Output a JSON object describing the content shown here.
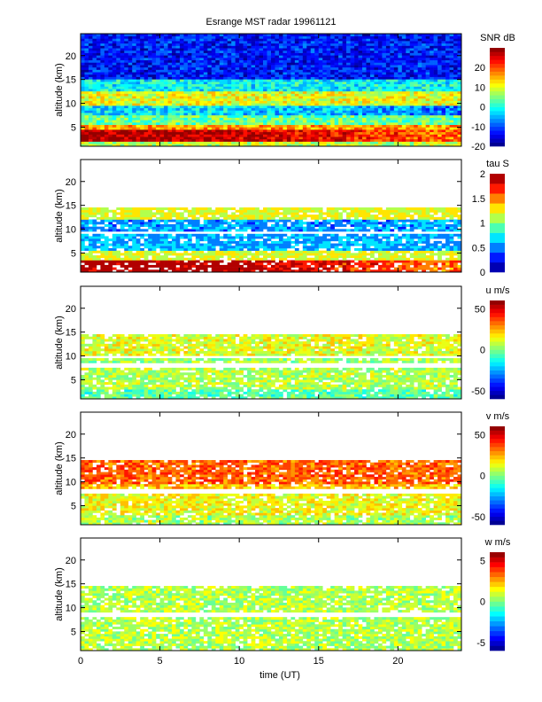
{
  "chart_data": {
    "type": "heatmap",
    "title": "Esrange MST radar 19961121",
    "xlabel": "time (UT)",
    "ylabel": "altitude (km)",
    "xlim": [
      0,
      24
    ],
    "ylim": [
      1,
      24.6
    ],
    "xticks": [
      0,
      5,
      10,
      15,
      20
    ],
    "yticks": [
      5,
      10,
      15,
      20
    ],
    "panels": [
      {
        "name": "snr",
        "colorbar_label": "SNR dB",
        "clim": [
          -20,
          30
        ],
        "cticks": [
          -20,
          -10,
          0,
          10,
          20
        ],
        "levels": 25,
        "profile": [
          {
            "alt": [
              1,
              2
            ],
            "value": 8
          },
          {
            "alt": [
              2,
              4.5
            ],
            "value": 28,
            "late_value": 18
          },
          {
            "alt": [
              4.5,
              5.5
            ],
            "value": 16
          },
          {
            "alt": [
              5.5,
              7.5
            ],
            "value": 4
          },
          {
            "alt": [
              7.5,
              9.5
            ],
            "value": -2,
            "late_value": -8
          },
          {
            "alt": [
              9.5,
              12.5
            ],
            "value": 10
          },
          {
            "alt": [
              12.5,
              15
            ],
            "value": -1
          },
          {
            "alt": [
              15,
              24.6
            ],
            "value": -13
          }
        ],
        "coverage": 1.0
      },
      {
        "name": "tau",
        "colorbar_label": "tau S",
        "clim": [
          0,
          2
        ],
        "cticks": [
          0,
          0.5,
          1,
          1.5,
          2
        ],
        "levels": 10,
        "profile": [
          {
            "alt": [
              1,
              3.5
            ],
            "value": 1.95,
            "late_value": 1.5
          },
          {
            "alt": [
              3.5,
              5.5
            ],
            "value": 1.2
          },
          {
            "alt": [
              5.5,
              9
            ],
            "value": 0.6
          },
          {
            "alt": [
              9,
              9.5
            ],
            "value": null
          },
          {
            "alt": [
              9.5,
              12
            ],
            "value": 0.55
          },
          {
            "alt": [
              12,
              14.5
            ],
            "value": 1.2
          },
          {
            "alt": [
              14.5,
              24.6
            ],
            "value": null
          }
        ],
        "coverage": 0.85
      },
      {
        "name": "u",
        "colorbar_label": "u m/s",
        "clim": [
          -60,
          60
        ],
        "cticks": [
          -50,
          0,
          50
        ],
        "levels": 24,
        "profile": [
          {
            "alt": [
              1,
              3
            ],
            "value": -5
          },
          {
            "alt": [
              3,
              7.5
            ],
            "value": 6
          },
          {
            "alt": [
              7.5,
              8.5
            ],
            "value": null
          },
          {
            "alt": [
              8.5,
              9.5
            ],
            "value": 4
          },
          {
            "alt": [
              9.5,
              10
            ],
            "value": null
          },
          {
            "alt": [
              10,
              14.5
            ],
            "value": 12
          },
          {
            "alt": [
              14.5,
              24.6
            ],
            "value": null
          }
        ],
        "coverage": 0.85
      },
      {
        "name": "v",
        "colorbar_label": "v m/s",
        "clim": [
          -60,
          60
        ],
        "cticks": [
          -50,
          0,
          50
        ],
        "levels": 24,
        "profile": [
          {
            "alt": [
              1,
              3
            ],
            "value": 5
          },
          {
            "alt": [
              3,
              7.5
            ],
            "value": 14
          },
          {
            "alt": [
              7.5,
              8.5
            ],
            "value": null
          },
          {
            "alt": [
              8.5,
              9.5
            ],
            "value": 22
          },
          {
            "alt": [
              9.5,
              14.5
            ],
            "value": 34
          },
          {
            "alt": [
              14.5,
              24.6
            ],
            "value": null
          }
        ],
        "coverage": 0.85
      },
      {
        "name": "w",
        "colorbar_label": "w m/s",
        "clim": [
          -6,
          6
        ],
        "cticks": [
          -5,
          0,
          5
        ],
        "levels": 20,
        "profile": [
          {
            "alt": [
              1,
              8
            ],
            "value": 0.6
          },
          {
            "alt": [
              8,
              9
            ],
            "value": null
          },
          {
            "alt": [
              9,
              14.5
            ],
            "value": 0.6
          },
          {
            "alt": [
              14.5,
              24.6
            ],
            "value": null
          }
        ],
        "coverage": 0.85
      }
    ]
  }
}
